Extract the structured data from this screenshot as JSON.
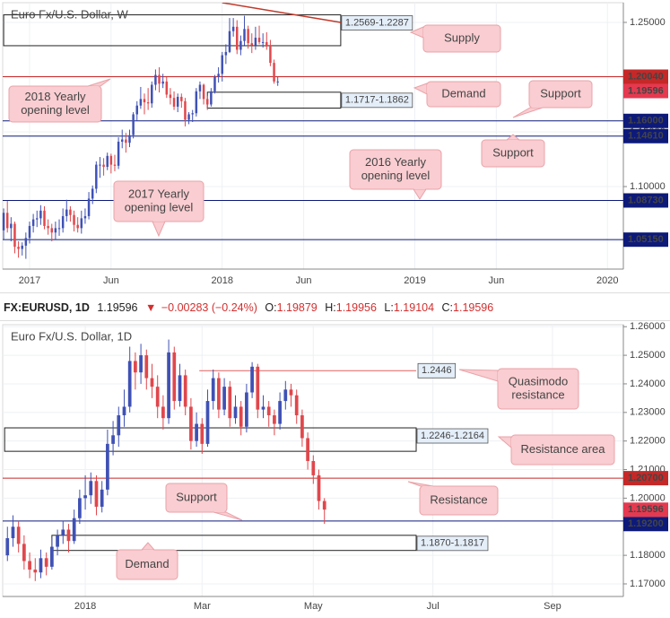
{
  "chart_data": [
    {
      "type": "candlestick",
      "title": "Euro Fx/U.S. Dollar, W",
      "x": [
        -7,
        -6,
        -5,
        -4,
        -3,
        -2,
        -1,
        0,
        1,
        2,
        3,
        4,
        5,
        6,
        7,
        8,
        9,
        10,
        11,
        12,
        13,
        14,
        15,
        16,
        17,
        18,
        19,
        20,
        21,
        22,
        23,
        24,
        25,
        26,
        27,
        28,
        29,
        30,
        31,
        32,
        33,
        34,
        35,
        36,
        37,
        38,
        39,
        40,
        41,
        42,
        43,
        44,
        45,
        46,
        47,
        48,
        49,
        50,
        51,
        52,
        53,
        54,
        55,
        56,
        57,
        58,
        59,
        60,
        61,
        62,
        63,
        64,
        65,
        66,
        67
      ],
      "ohlc": [
        [
          1.06,
          1.08,
          1.052,
          1.076
        ],
        [
          1.076,
          1.087,
          1.058,
          1.062
        ],
        [
          1.062,
          1.072,
          1.05,
          1.066
        ],
        [
          1.066,
          1.068,
          1.039,
          1.045
        ],
        [
          1.045,
          1.05,
          1.035,
          1.043
        ],
        [
          1.043,
          1.049,
          1.037,
          1.046
        ],
        [
          1.046,
          1.058,
          1.034,
          1.053
        ],
        [
          1.053,
          1.068,
          1.048,
          1.064
        ],
        [
          1.064,
          1.075,
          1.058,
          1.07
        ],
        [
          1.07,
          1.078,
          1.063,
          1.071
        ],
        [
          1.071,
          1.083,
          1.065,
          1.078
        ],
        [
          1.078,
          1.082,
          1.061,
          1.064
        ],
        [
          1.064,
          1.07,
          1.056,
          1.062
        ],
        [
          1.062,
          1.066,
          1.05,
          1.058
        ],
        [
          1.058,
          1.068,
          1.052,
          1.062
        ],
        [
          1.062,
          1.07,
          1.055,
          1.062
        ],
        [
          1.062,
          1.08,
          1.058,
          1.073
        ],
        [
          1.073,
          1.088,
          1.068,
          1.079
        ],
        [
          1.079,
          1.082,
          1.068,
          1.074
        ],
        [
          1.074,
          1.078,
          1.059,
          1.065
        ],
        [
          1.065,
          1.072,
          1.058,
          1.062
        ],
        [
          1.062,
          1.078,
          1.057,
          1.071
        ],
        [
          1.071,
          1.08,
          1.066,
          1.073
        ],
        [
          1.073,
          1.095,
          1.07,
          1.089
        ],
        [
          1.089,
          1.101,
          1.084,
          1.098
        ],
        [
          1.098,
          1.123,
          1.094,
          1.12
        ],
        [
          1.12,
          1.127,
          1.108,
          1.12
        ],
        [
          1.12,
          1.126,
          1.11,
          1.118
        ],
        [
          1.118,
          1.131,
          1.115,
          1.128
        ],
        [
          1.128,
          1.13,
          1.112,
          1.12
        ],
        [
          1.12,
          1.129,
          1.114,
          1.119
        ],
        [
          1.119,
          1.145,
          1.116,
          1.141
        ],
        [
          1.141,
          1.152,
          1.135,
          1.143
        ],
        [
          1.143,
          1.149,
          1.131,
          1.14
        ],
        [
          1.14,
          1.152,
          1.136,
          1.147
        ],
        [
          1.147,
          1.168,
          1.144,
          1.166
        ],
        [
          1.166,
          1.178,
          1.16,
          1.174
        ],
        [
          1.174,
          1.191,
          1.171,
          1.18
        ],
        [
          1.18,
          1.185,
          1.166,
          1.177
        ],
        [
          1.177,
          1.19,
          1.17,
          1.176
        ],
        [
          1.176,
          1.196,
          1.172,
          1.193
        ],
        [
          1.193,
          1.207,
          1.188,
          1.202
        ],
        [
          1.202,
          1.209,
          1.186,
          1.194
        ],
        [
          1.194,
          1.203,
          1.19,
          1.196
        ],
        [
          1.196,
          1.2,
          1.181,
          1.184
        ],
        [
          1.184,
          1.19,
          1.175,
          1.181
        ],
        [
          1.181,
          1.187,
          1.17,
          1.173
        ],
        [
          1.173,
          1.185,
          1.168,
          1.182
        ],
        [
          1.182,
          1.185,
          1.172,
          1.178
        ],
        [
          1.178,
          1.181,
          1.155,
          1.161
        ],
        [
          1.161,
          1.168,
          1.157,
          1.166
        ],
        [
          1.166,
          1.17,
          1.159,
          1.167
        ],
        [
          1.167,
          1.19,
          1.164,
          1.187
        ],
        [
          1.187,
          1.196,
          1.18,
          1.193
        ],
        [
          1.193,
          1.194,
          1.175,
          1.18
        ],
        [
          1.18,
          1.183,
          1.17,
          1.175
        ],
        [
          1.175,
          1.19,
          1.173,
          1.187
        ],
        [
          1.187,
          1.202,
          1.185,
          1.2
        ],
        [
          1.2,
          1.209,
          1.195,
          1.203
        ],
        [
          1.203,
          1.223,
          1.196,
          1.22
        ],
        [
          1.22,
          1.23,
          1.212,
          1.223
        ],
        [
          1.223,
          1.254,
          1.222,
          1.242
        ],
        [
          1.242,
          1.254,
          1.237,
          1.246
        ],
        [
          1.246,
          1.252,
          1.221,
          1.225
        ],
        [
          1.225,
          1.238,
          1.22,
          1.233
        ],
        [
          1.233,
          1.256,
          1.229,
          1.244
        ],
        [
          1.244,
          1.247,
          1.226,
          1.231
        ],
        [
          1.231,
          1.24,
          1.222,
          1.229
        ],
        [
          1.229,
          1.246,
          1.225,
          1.236
        ],
        [
          1.236,
          1.247,
          1.23,
          1.232
        ],
        [
          1.232,
          1.24,
          1.227,
          1.232
        ],
        [
          1.232,
          1.241,
          1.225,
          1.228
        ],
        [
          1.228,
          1.234,
          1.21,
          1.213
        ],
        [
          1.213,
          1.216,
          1.194,
          1.196
        ],
        [
          1.196,
          1.2,
          1.192,
          1.196
        ]
      ],
      "up_color": "#3f51b5",
      "down_color": "#e0474c",
      "xlim": [
        -7.26,
        160.3
      ],
      "xticks": [
        {
          "value": 0,
          "label": "2017"
        },
        {
          "value": 22,
          "label": "Jun"
        },
        {
          "value": 52,
          "label": "2018"
        },
        {
          "value": 74,
          "label": "Jun"
        },
        {
          "value": 104,
          "label": "2019"
        },
        {
          "value": 126,
          "label": "Jun"
        },
        {
          "value": 156,
          "label": "2020"
        }
      ],
      "ylim": [
        1.0246,
        1.268
      ],
      "yticks": [
        {
          "value": 1.05,
          "label": "1.05000"
        },
        {
          "value": 1.1,
          "label": "1.10000"
        },
        {
          "value": 1.15,
          "label": "1.15000"
        },
        {
          "value": 1.2,
          "label": "1.20000"
        },
        {
          "value": 1.25,
          "label": "1.25000"
        }
      ],
      "grid": true,
      "levels": [
        {
          "value": 1.2004,
          "label": "1.20040",
          "color": "#c62828"
        },
        {
          "value": 1.16,
          "label": "1.16000",
          "color": "#0d1a7a"
        },
        {
          "value": 1.1461,
          "label": "1.14610",
          "color": "#0d1a7a"
        },
        {
          "value": 1.0873,
          "label": "1.08730",
          "color": "#0d1a7a"
        },
        {
          "value": 1.0515,
          "label": "1.05150",
          "color": "#0d1a7a"
        }
      ],
      "last": {
        "value": 1.19596,
        "label": "1.19596",
        "color": "#e53950"
      },
      "zones": [
        {
          "high": 1.2569,
          "low": 1.2287,
          "label": "1.2569-1.2287",
          "x": [
            -7,
            84
          ]
        },
        {
          "high": 1.1862,
          "low": 1.1717,
          "label": "1.1717-1.1862",
          "x": [
            48,
            84
          ]
        }
      ],
      "trendlines": [
        {
          "x": [
            52,
            84
          ],
          "y": [
            1.268,
            1.25
          ],
          "color": "#c0392b"
        }
      ],
      "annotations": [
        [
          "Supply"
        ],
        [
          "Demand"
        ],
        [
          "Support"
        ],
        [
          "Support"
        ],
        [
          "2018 Yearly",
          "opening level"
        ],
        [
          "2016 Yearly",
          "opening level"
        ],
        [
          "2017 Yearly",
          "opening level"
        ]
      ]
    },
    {
      "type": "candlestick",
      "title": "Euro Fx/U.S. Dollar, 1D",
      "x": [
        -28,
        -26,
        -24,
        -22,
        -20,
        -18,
        -16,
        -14,
        -12,
        -10,
        -8,
        -6,
        -4,
        -2,
        0,
        2,
        4,
        6,
        8,
        10,
        12,
        14,
        16,
        18,
        20,
        22,
        24,
        26,
        28,
        30,
        32,
        34,
        36,
        38,
        40,
        42,
        44,
        46,
        48,
        50,
        52,
        54,
        56,
        58,
        60,
        62,
        64,
        66,
        68,
        70,
        72,
        74,
        76,
        78,
        80,
        82,
        84,
        86
      ],
      "ohlc": [
        [
          1.18,
          1.19,
          1.178,
          1.186
        ],
        [
          1.186,
          1.194,
          1.183,
          1.19
        ],
        [
          1.19,
          1.192,
          1.181,
          1.184
        ],
        [
          1.184,
          1.187,
          1.175,
          1.178
        ],
        [
          1.178,
          1.181,
          1.172,
          1.175
        ],
        [
          1.175,
          1.179,
          1.171,
          1.174
        ],
        [
          1.174,
          1.182,
          1.172,
          1.179
        ],
        [
          1.179,
          1.181,
          1.173,
          1.176
        ],
        [
          1.176,
          1.186,
          1.175,
          1.183
        ],
        [
          1.183,
          1.189,
          1.18,
          1.187
        ],
        [
          1.187,
          1.192,
          1.184,
          1.189
        ],
        [
          1.189,
          1.191,
          1.181,
          1.185
        ],
        [
          1.185,
          1.196,
          1.184,
          1.193
        ],
        [
          1.193,
          1.203,
          1.191,
          1.2
        ],
        [
          1.2,
          1.208,
          1.196,
          1.201
        ],
        [
          1.201,
          1.209,
          1.198,
          1.206
        ],
        [
          1.206,
          1.208,
          1.194,
          1.197
        ],
        [
          1.197,
          1.206,
          1.195,
          1.203
        ],
        [
          1.203,
          1.224,
          1.201,
          1.219
        ],
        [
          1.219,
          1.227,
          1.215,
          1.222
        ],
        [
          1.222,
          1.232,
          1.218,
          1.229
        ],
        [
          1.229,
          1.238,
          1.225,
          1.232
        ],
        [
          1.232,
          1.253,
          1.23,
          1.248
        ],
        [
          1.248,
          1.251,
          1.238,
          1.244
        ],
        [
          1.244,
          1.254,
          1.24,
          1.25
        ],
        [
          1.25,
          1.252,
          1.238,
          1.242
        ],
        [
          1.242,
          1.247,
          1.235,
          1.239
        ],
        [
          1.239,
          1.243,
          1.228,
          1.232
        ],
        [
          1.232,
          1.236,
          1.224,
          1.228
        ],
        [
          1.228,
          1.2555,
          1.226,
          1.251
        ],
        [
          1.251,
          1.253,
          1.231,
          1.234
        ],
        [
          1.234,
          1.247,
          1.232,
          1.243
        ],
        [
          1.243,
          1.245,
          1.229,
          1.232
        ],
        [
          1.232,
          1.235,
          1.217,
          1.22
        ],
        [
          1.22,
          1.23,
          1.218,
          1.226
        ],
        [
          1.226,
          1.228,
          1.2155,
          1.219
        ],
        [
          1.219,
          1.238,
          1.218,
          1.234
        ],
        [
          1.234,
          1.245,
          1.231,
          1.242
        ],
        [
          1.242,
          1.244,
          1.228,
          1.231
        ],
        [
          1.231,
          1.242,
          1.229,
          1.239
        ],
        [
          1.239,
          1.241,
          1.225,
          1.228
        ],
        [
          1.228,
          1.236,
          1.226,
          1.232
        ],
        [
          1.232,
          1.234,
          1.222,
          1.225
        ],
        [
          1.225,
          1.24,
          1.223,
          1.237
        ],
        [
          1.237,
          1.2476,
          1.235,
          1.246
        ],
        [
          1.246,
          1.247,
          1.228,
          1.231
        ],
        [
          1.231,
          1.236,
          1.228,
          1.232
        ],
        [
          1.232,
          1.234,
          1.225,
          1.229
        ],
        [
          1.229,
          1.231,
          1.222,
          1.226
        ],
        [
          1.226,
          1.237,
          1.224,
          1.234
        ],
        [
          1.234,
          1.241,
          1.231,
          1.238
        ],
        [
          1.238,
          1.24,
          1.232,
          1.236
        ],
        [
          1.236,
          1.238,
          1.226,
          1.229
        ],
        [
          1.229,
          1.231,
          1.218,
          1.221
        ],
        [
          1.221,
          1.223,
          1.21,
          1.213
        ],
        [
          1.213,
          1.215,
          1.205,
          1.208
        ],
        [
          1.208,
          1.21,
          1.196,
          1.199
        ],
        [
          1.199,
          1.2,
          1.191,
          1.196
        ]
      ],
      "up_color": "#3f51b5",
      "down_color": "#e0474c",
      "xlim": [
        -29.7,
        193.5
      ],
      "xticks": [
        {
          "value": 0,
          "label": "2018"
        },
        {
          "value": 42,
          "label": "Mar"
        },
        {
          "value": 82,
          "label": "May"
        },
        {
          "value": 125,
          "label": "Jul"
        },
        {
          "value": 168,
          "label": "Sep"
        }
      ],
      "ylim": [
        1.1656,
        1.2607
      ],
      "yticks": [
        {
          "value": 1.17,
          "label": "1.17000"
        },
        {
          "value": 1.18,
          "label": "1.18000"
        },
        {
          "value": 1.2,
          "label": "1.20000"
        },
        {
          "value": 1.21,
          "label": "1.21000"
        },
        {
          "value": 1.22,
          "label": "1.22000"
        },
        {
          "value": 1.23,
          "label": "1.23000"
        },
        {
          "value": 1.24,
          "label": "1.24000"
        },
        {
          "value": 1.25,
          "label": "1.25000"
        },
        {
          "value": 1.26,
          "label": "1.26000"
        }
      ],
      "grid": true,
      "levels": [
        {
          "value": 1.2446,
          "label": "1.2446",
          "color": "#e57373",
          "x": [
            41,
            119
          ]
        },
        {
          "value": 1.207,
          "label": "1.20700",
          "color": "#c62828"
        },
        {
          "value": 1.192,
          "label": "1.19200",
          "color": "#0d1a7a"
        }
      ],
      "last": {
        "value": 1.19596,
        "label": "1.19596",
        "color": "#e53950"
      },
      "zones": [
        {
          "high": 1.2246,
          "low": 1.2164,
          "label": "1.2246-1.2164",
          "x": [
            -29,
            119
          ]
        },
        {
          "high": 1.187,
          "low": 1.1817,
          "label": "1.1870-1.1817",
          "x": [
            -12,
            119
          ]
        }
      ],
      "trendlines": [],
      "annotations": [
        [
          "Quasimodo",
          "resistance"
        ],
        [
          "Resistance area"
        ],
        [
          "Resistance"
        ],
        [
          "Support"
        ],
        [
          "Demand"
        ]
      ]
    }
  ],
  "header": {
    "symbol": "FX:EURUSD, 1D",
    "price": "1.19596",
    "arrow": "▼",
    "change": "−0.00283 (−0.24%)",
    "ohlc": [
      {
        "label": "O:",
        "value": "1.19879"
      },
      {
        "label": "H:",
        "value": "1.19956"
      },
      {
        "label": "L:",
        "value": "1.19104"
      },
      {
        "label": "C:",
        "value": "1.19596"
      }
    ]
  }
}
